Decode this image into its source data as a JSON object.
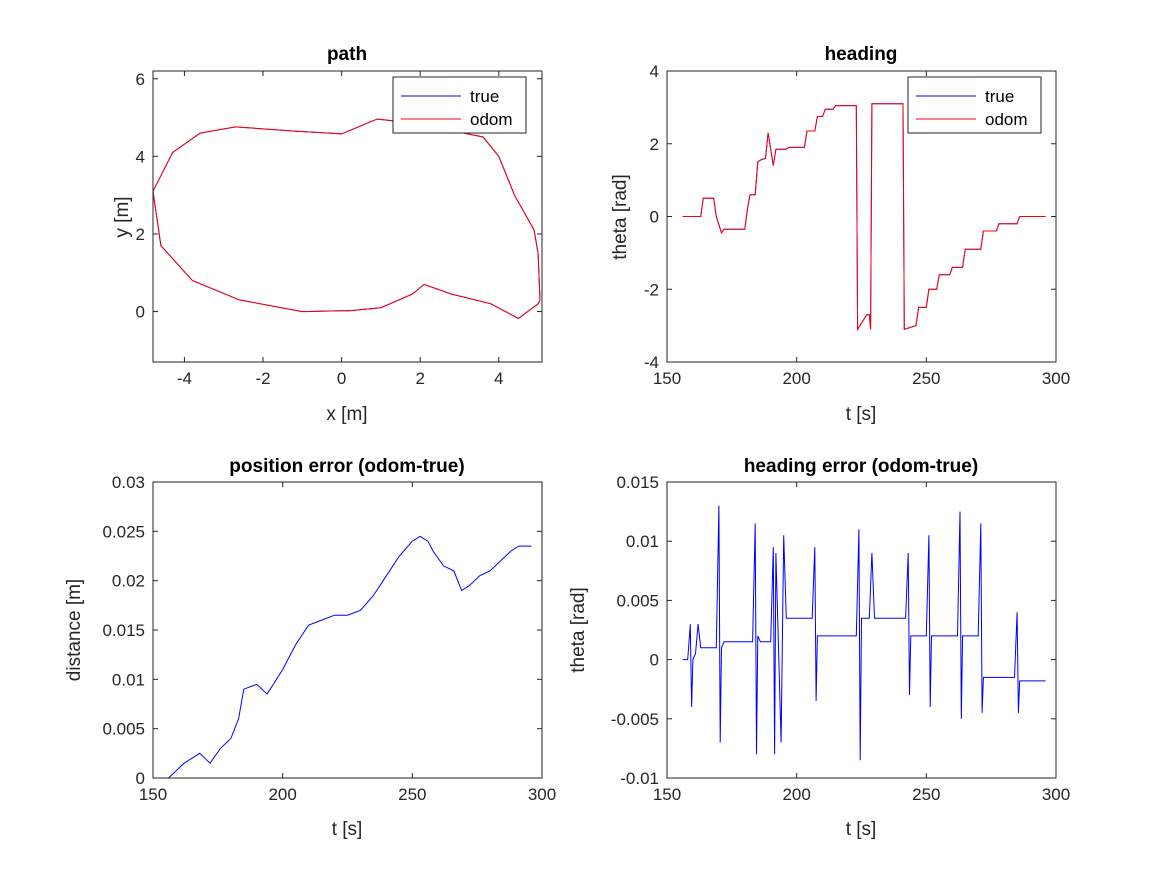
{
  "colors": {
    "true": "#0000ff",
    "odom": "#ff0000",
    "error": "#0000ff",
    "axes": "#262626"
  },
  "chart_data": [
    {
      "type": "line",
      "title": "path",
      "xlabel": "x [m]",
      "ylabel": "y [m]",
      "xlim": [
        -4.8,
        5.1
      ],
      "ylim": [
        -1.3,
        6.2
      ],
      "xticks": [
        -4,
        -2,
        0,
        2,
        4
      ],
      "yticks": [
        0,
        2,
        4,
        6
      ],
      "grid": false,
      "legend": "top-right",
      "series": [
        {
          "name": "true",
          "color": "#0000ff",
          "x": [
            0,
            -1,
            -2.6,
            -3.8,
            -4.6,
            -4.8,
            -4.3,
            -3.6,
            -2.7,
            -1.2,
            0.0,
            0.9,
            1.9,
            3.6,
            4.0,
            4.4,
            4.9,
            4.95,
            5.0,
            5.05,
            5.0,
            4.5,
            3.8,
            2.8,
            2.1,
            1.8,
            1.0,
            0.2,
            0.0
          ],
          "y": [
            0.02,
            0.0,
            0.3,
            0.8,
            1.7,
            3.1,
            4.1,
            4.6,
            4.76,
            4.65,
            4.58,
            4.96,
            4.85,
            4.5,
            4.0,
            3.0,
            2.1,
            1.8,
            1.5,
            0.3,
            0.2,
            -0.18,
            0.2,
            0.45,
            0.7,
            0.45,
            0.1,
            0.02,
            0.02
          ]
        },
        {
          "name": "odom",
          "color": "#ff0000",
          "x": [
            0,
            -1,
            -2.6,
            -3.8,
            -4.6,
            -4.8,
            -4.3,
            -3.6,
            -2.7,
            -1.2,
            0.0,
            0.9,
            1.9,
            3.6,
            4.0,
            4.4,
            4.9,
            4.95,
            5.0,
            5.05,
            5.0,
            4.5,
            3.8,
            2.8,
            2.1,
            1.8,
            1.0,
            0.2,
            0.0
          ],
          "y": [
            0.02,
            0.0,
            0.3,
            0.8,
            1.7,
            3.1,
            4.1,
            4.6,
            4.76,
            4.65,
            4.58,
            4.96,
            4.85,
            4.5,
            4.0,
            3.0,
            2.1,
            1.8,
            1.5,
            0.3,
            0.2,
            -0.18,
            0.2,
            0.45,
            0.7,
            0.45,
            0.1,
            0.02,
            0.02
          ]
        }
      ]
    },
    {
      "type": "line",
      "title": "heading",
      "xlabel": "t [s]",
      "ylabel": "theta [rad]",
      "xlim": [
        150,
        300
      ],
      "ylim": [
        -4,
        4
      ],
      "xticks": [
        150,
        200,
        250,
        300
      ],
      "yticks": [
        -4,
        -2,
        0,
        2,
        4
      ],
      "grid": false,
      "legend": "top-right",
      "series": [
        {
          "name": "true",
          "color": "#0000ff",
          "x": [
            156,
            163,
            164,
            168,
            169,
            171,
            172,
            180,
            181,
            182,
            184,
            185,
            186,
            188,
            189,
            191,
            192,
            193,
            196,
            197,
            203,
            204,
            207,
            208,
            210,
            211,
            214,
            215,
            222,
            223,
            223.5,
            227,
            228,
            228.5,
            229,
            230,
            240,
            241,
            241.5,
            246,
            247,
            250,
            251,
            254,
            255,
            259,
            260,
            264,
            265,
            271,
            272,
            277,
            278,
            285,
            286,
            296
          ],
          "y": [
            0,
            0,
            0.5,
            0.5,
            0,
            -0.45,
            -0.35,
            -0.35,
            0.2,
            0.6,
            0.6,
            1.5,
            1.55,
            1.6,
            2.3,
            1.4,
            1.85,
            1.85,
            1.85,
            1.9,
            1.9,
            2.35,
            2.35,
            2.75,
            2.75,
            2.95,
            2.95,
            3.05,
            3.05,
            3.05,
            -3.1,
            -2.7,
            -2.7,
            -3.1,
            3.1,
            3.1,
            3.1,
            3.1,
            -3.1,
            -3.0,
            -2.5,
            -2.5,
            -2.0,
            -2.0,
            -1.6,
            -1.6,
            -1.4,
            -1.4,
            -0.9,
            -0.9,
            -0.4,
            -0.4,
            -0.2,
            -0.2,
            0.0,
            0.0
          ]
        },
        {
          "name": "odom",
          "color": "#ff0000",
          "x": [
            156,
            163,
            164,
            168,
            169,
            171,
            172,
            180,
            181,
            182,
            184,
            185,
            186,
            188,
            189,
            191,
            192,
            193,
            196,
            197,
            203,
            204,
            207,
            208,
            210,
            211,
            214,
            215,
            222,
            223,
            223.5,
            227,
            228,
            228.5,
            229,
            230,
            240,
            241,
            241.5,
            246,
            247,
            250,
            251,
            254,
            255,
            259,
            260,
            264,
            265,
            271,
            272,
            277,
            278,
            285,
            286,
            296
          ],
          "y": [
            0,
            0,
            0.5,
            0.5,
            0,
            -0.45,
            -0.35,
            -0.35,
            0.2,
            0.6,
            0.6,
            1.5,
            1.55,
            1.6,
            2.3,
            1.4,
            1.85,
            1.85,
            1.85,
            1.9,
            1.9,
            2.35,
            2.35,
            2.75,
            2.75,
            2.95,
            2.95,
            3.05,
            3.05,
            3.05,
            -3.1,
            -2.7,
            -2.7,
            -3.1,
            3.1,
            3.1,
            3.1,
            3.1,
            -3.1,
            -3.0,
            -2.5,
            -2.5,
            -2.0,
            -2.0,
            -1.6,
            -1.6,
            -1.4,
            -1.4,
            -0.9,
            -0.9,
            -0.4,
            -0.4,
            -0.2,
            -0.2,
            0.0,
            0.0
          ]
        }
      ]
    },
    {
      "type": "line",
      "title": "position error (odom-true)",
      "xlabel": "t [s]",
      "ylabel": "distance [m]",
      "xlim": [
        150,
        300
      ],
      "ylim": [
        0,
        0.03
      ],
      "xticks": [
        150,
        200,
        250,
        300
      ],
      "yticks": [
        0,
        0.005,
        0.01,
        0.015,
        0.02,
        0.025,
        0.03
      ],
      "ytick_labels": [
        "0",
        "0.005",
        "0.01",
        "0.015",
        "0.02",
        "0.025",
        "0.03"
      ],
      "grid": false,
      "series": [
        {
          "color": "#0000ff",
          "x": [
            156,
            160,
            162,
            165,
            168,
            170,
            172,
            176,
            180,
            183,
            185,
            190,
            194,
            200,
            205,
            210,
            215,
            220,
            225,
            230,
            235,
            240,
            245,
            250,
            253,
            256,
            258,
            262,
            266,
            269,
            272,
            276,
            280,
            284,
            288,
            291,
            296
          ],
          "y": [
            0,
            0.001,
            0.0015,
            0.002,
            0.0025,
            0.002,
            0.0015,
            0.003,
            0.004,
            0.006,
            0.009,
            0.0095,
            0.0085,
            0.011,
            0.0135,
            0.0155,
            0.016,
            0.0165,
            0.0165,
            0.017,
            0.0185,
            0.0205,
            0.0225,
            0.024,
            0.0245,
            0.024,
            0.023,
            0.0215,
            0.021,
            0.019,
            0.0195,
            0.0205,
            0.021,
            0.022,
            0.023,
            0.0235,
            0.0235
          ]
        }
      ]
    },
    {
      "type": "line",
      "title": "heading error (odom-true)",
      "xlabel": "t [s]",
      "ylabel": "theta [rad]",
      "xlim": [
        150,
        300
      ],
      "ylim": [
        -0.01,
        0.015
      ],
      "xticks": [
        150,
        200,
        250,
        300
      ],
      "yticks": [
        -0.01,
        -0.005,
        0,
        0.005,
        0.01,
        0.015
      ],
      "ytick_labels": [
        "-0.01",
        "-0.005",
        "0",
        "0.005",
        "0.01",
        "0.015"
      ],
      "grid": false,
      "series": [
        {
          "color": "#0000ff",
          "x": [
            156,
            158,
            159,
            159.5,
            160,
            161,
            162,
            163,
            165,
            169,
            170,
            170.5,
            171,
            172,
            174,
            180,
            183,
            184,
            184.5,
            185,
            186,
            187,
            190,
            191,
            191.5,
            192,
            193,
            194,
            195,
            196,
            197,
            205,
            206,
            207,
            207.5,
            208,
            209,
            212,
            214,
            215,
            220,
            223,
            224,
            224.5,
            225,
            228,
            229,
            230,
            240,
            242,
            243,
            243.5,
            244,
            246,
            250,
            251,
            251.5,
            252,
            253,
            256,
            262,
            263,
            263.5,
            264,
            265,
            270,
            271,
            271.5,
            272,
            280,
            284,
            285,
            285.5,
            286,
            290,
            296
          ],
          "y": [
            0,
            0,
            0.003,
            -0.004,
            0,
            0.0005,
            0.003,
            0.001,
            0.001,
            0.001,
            0.013,
            -0.007,
            0.001,
            0.0015,
            0.0015,
            0.0015,
            0.0015,
            0.0115,
            -0.008,
            0.002,
            0.0015,
            0.0015,
            0.0015,
            0.0095,
            -0.008,
            0.009,
            0.001,
            -0.007,
            0.0105,
            0.0035,
            0.0035,
            0.0035,
            0.0035,
            0.0095,
            -0.0035,
            0.002,
            0.002,
            0.002,
            0.002,
            0.002,
            0.002,
            0.002,
            0.011,
            -0.0085,
            0.0035,
            0.0035,
            0.009,
            0.0035,
            0.0035,
            0.0035,
            0.009,
            -0.003,
            0.002,
            0.002,
            0.002,
            0.0105,
            -0.004,
            0.002,
            0.002,
            0.002,
            0.002,
            0.0125,
            -0.005,
            0.002,
            0.002,
            0.002,
            0.0115,
            -0.0045,
            -0.0015,
            -0.0015,
            -0.0015,
            0.004,
            -0.0045,
            -0.0018,
            -0.0018,
            -0.0018
          ]
        }
      ]
    }
  ]
}
